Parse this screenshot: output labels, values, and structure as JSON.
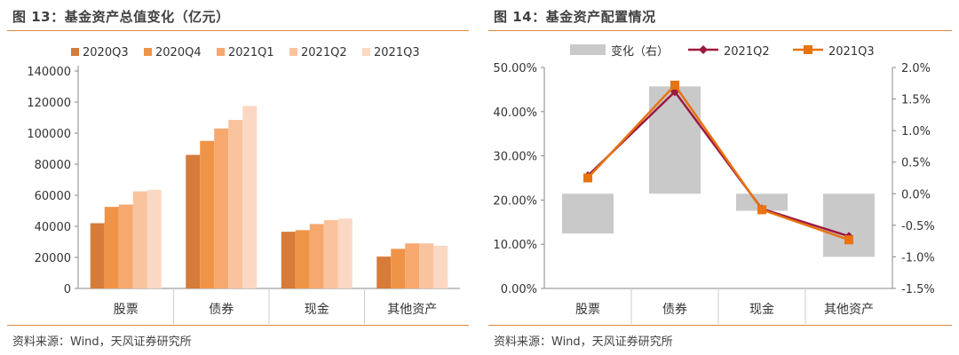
{
  "left": {
    "title": "图 13：基金资产总值变化（亿元）",
    "source": "资料来源：Wind，天风证券研究所"
  },
  "right": {
    "title": "图 14：基金资产配置情况",
    "source": "资料来源：Wind，天风证券研究所"
  },
  "chart_data": [
    {
      "type": "bar",
      "title": "图 13：基金资产总值变化（亿元）",
      "categories": [
        "股票",
        "债券",
        "现金",
        "其他资产"
      ],
      "series": [
        {
          "name": "2020Q3",
          "color": "#d67b3a",
          "values": [
            42000,
            86000,
            36500,
            20500
          ]
        },
        {
          "name": "2020Q4",
          "color": "#ef9447",
          "values": [
            52500,
            95000,
            37500,
            25500
          ]
        },
        {
          "name": "2021Q1",
          "color": "#f6a86e",
          "values": [
            54000,
            103000,
            41500,
            29000
          ]
        },
        {
          "name": "2021Q2",
          "color": "#f9c39d",
          "values": [
            62500,
            108500,
            44000,
            29000
          ]
        },
        {
          "name": "2021Q3",
          "color": "#fbd8c3",
          "values": [
            63500,
            117500,
            45000,
            27500
          ]
        }
      ],
      "ylim": [
        0,
        140000
      ],
      "yticks": [
        "0",
        "20000",
        "40000",
        "60000",
        "80000",
        "100000",
        "120000",
        "140000"
      ],
      "legend": "top"
    },
    {
      "type": "bar+line",
      "title": "图 14：基金资产配置情况",
      "categories": [
        "股票",
        "债券",
        "现金",
        "其他资产"
      ],
      "bar_series": {
        "name": "变化（右）",
        "color": "#c9c9c9",
        "axis": "right",
        "values": [
          -0.63,
          1.7,
          -0.27,
          -1.0
        ]
      },
      "line_series": [
        {
          "name": "2021Q2",
          "color": "#9c1a3e",
          "marker": "diamond",
          "axis": "left",
          "values": [
            25.5,
            44.5,
            18.0,
            11.8
          ]
        },
        {
          "name": "2021Q3",
          "color": "#e8730f",
          "marker": "square",
          "axis": "left",
          "values": [
            25.0,
            46.0,
            17.8,
            11.0
          ]
        }
      ],
      "ylim_left": [
        0,
        50
      ],
      "ylim_right": [
        -1.5,
        2.0
      ],
      "yticks_left": [
        "0.00%",
        "10.00%",
        "20.00%",
        "30.00%",
        "40.00%",
        "50.00%"
      ],
      "yticks_right": [
        "-1.5%",
        "-1.0%",
        "-0.5%",
        "0.0%",
        "0.5%",
        "1.0%",
        "1.5%",
        "2.0%"
      ],
      "legend": "top"
    }
  ]
}
